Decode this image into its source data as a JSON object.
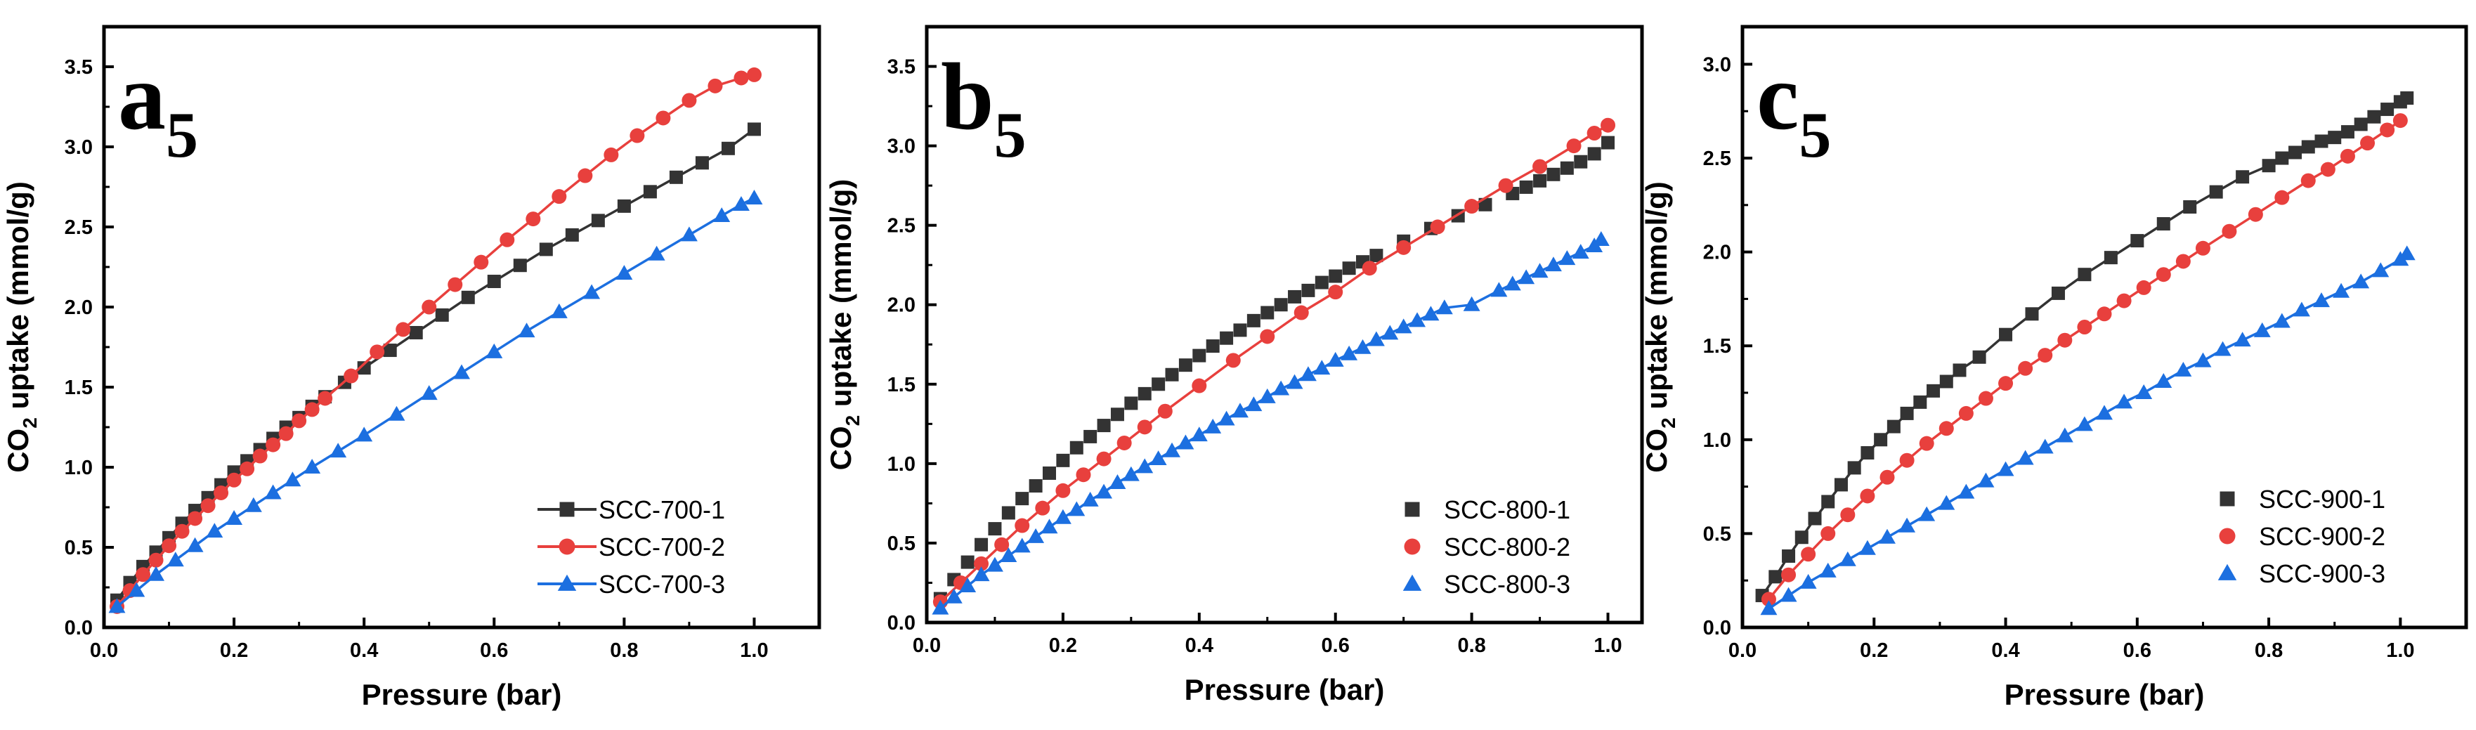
{
  "chart_data": [
    {
      "type": "scatter",
      "panel_letter": "a",
      "panel_subscript": "5",
      "xlabel": "Pressure (bar)",
      "ylabel_prefix": "CO",
      "ylabel_subscript": "2",
      "ylabel_suffix": " uptake (mmol/g)",
      "xlim": [
        0,
        1.1
      ],
      "ylim": [
        0,
        3.75
      ],
      "xticks": [
        0.0,
        0.2,
        0.4,
        0.6,
        0.8,
        1.0
      ],
      "xtick_labels": [
        "0.0",
        "0.2",
        "0.4",
        "0.6",
        "0.8",
        "1.0"
      ],
      "yticks": [
        0.0,
        0.5,
        1.0,
        1.5,
        2.0,
        2.5,
        3.0,
        3.5
      ],
      "ytick_labels": [
        "0.0",
        "0.5",
        "1.0",
        "1.5",
        "2.0",
        "2.5",
        "3.0",
        "3.5"
      ],
      "legend_position": "bottom-right",
      "series": [
        {
          "name": "SCC-700-1",
          "color": "#333333",
          "marker": "square",
          "line": true,
          "x": [
            0.02,
            0.04,
            0.06,
            0.08,
            0.1,
            0.12,
            0.14,
            0.16,
            0.18,
            0.2,
            0.22,
            0.24,
            0.26,
            0.28,
            0.3,
            0.32,
            0.34,
            0.37,
            0.4,
            0.44,
            0.48,
            0.52,
            0.56,
            0.6,
            0.64,
            0.68,
            0.72,
            0.76,
            0.8,
            0.84,
            0.88,
            0.92,
            0.96,
            1.0
          ],
          "y": [
            0.17,
            0.28,
            0.38,
            0.47,
            0.56,
            0.65,
            0.73,
            0.81,
            0.89,
            0.97,
            1.04,
            1.11,
            1.18,
            1.25,
            1.31,
            1.38,
            1.44,
            1.53,
            1.62,
            1.73,
            1.84,
            1.95,
            2.06,
            2.16,
            2.26,
            2.36,
            2.45,
            2.54,
            2.63,
            2.72,
            2.81,
            2.9,
            2.99,
            3.11
          ]
        },
        {
          "name": "SCC-700-2",
          "color": "#e8403d",
          "marker": "circle",
          "line": true,
          "x": [
            0.02,
            0.04,
            0.06,
            0.08,
            0.1,
            0.12,
            0.14,
            0.16,
            0.18,
            0.2,
            0.22,
            0.24,
            0.26,
            0.28,
            0.3,
            0.32,
            0.34,
            0.38,
            0.42,
            0.46,
            0.5,
            0.54,
            0.58,
            0.62,
            0.66,
            0.7,
            0.74,
            0.78,
            0.82,
            0.86,
            0.9,
            0.94,
            0.98,
            1.0
          ],
          "y": [
            0.13,
            0.23,
            0.33,
            0.42,
            0.51,
            0.6,
            0.68,
            0.76,
            0.84,
            0.92,
            0.99,
            1.07,
            1.14,
            1.21,
            1.29,
            1.36,
            1.43,
            1.57,
            1.72,
            1.86,
            2.0,
            2.14,
            2.28,
            2.42,
            2.55,
            2.69,
            2.82,
            2.95,
            3.07,
            3.18,
            3.29,
            3.38,
            3.43,
            3.45
          ]
        },
        {
          "name": "SCC-700-3",
          "color": "#1c6fe0",
          "marker": "triangle",
          "line": true,
          "x": [
            0.02,
            0.05,
            0.08,
            0.11,
            0.14,
            0.17,
            0.2,
            0.23,
            0.26,
            0.29,
            0.32,
            0.36,
            0.4,
            0.45,
            0.5,
            0.55,
            0.6,
            0.65,
            0.7,
            0.75,
            0.8,
            0.85,
            0.9,
            0.95,
            0.98,
            1.0
          ],
          "y": [
            0.13,
            0.23,
            0.33,
            0.42,
            0.51,
            0.6,
            0.68,
            0.76,
            0.84,
            0.92,
            1.0,
            1.1,
            1.2,
            1.33,
            1.46,
            1.59,
            1.72,
            1.85,
            1.97,
            2.09,
            2.21,
            2.33,
            2.45,
            2.57,
            2.64,
            2.68
          ]
        }
      ]
    },
    {
      "type": "scatter",
      "panel_letter": "b",
      "panel_subscript": "5",
      "xlabel": "Pressure (bar)",
      "ylabel_prefix": "CO",
      "ylabel_subscript": "2",
      "ylabel_suffix": " uptake (mmol/g)",
      "xlim": [
        0,
        1.05
      ],
      "ylim": [
        0,
        3.75
      ],
      "xticks": [
        0.0,
        0.2,
        0.4,
        0.6,
        0.8,
        1.0
      ],
      "xtick_labels": [
        "0.0",
        "0.2",
        "0.4",
        "0.6",
        "0.8",
        "1.0"
      ],
      "yticks": [
        0.0,
        0.5,
        1.0,
        1.5,
        2.0,
        2.5,
        3.0,
        3.5
      ],
      "ytick_labels": [
        "0.0",
        "0.5",
        "1.0",
        "1.5",
        "2.0",
        "2.5",
        "3.0",
        "3.5"
      ],
      "legend_position": "bottom-right",
      "series": [
        {
          "name": "SCC-800-1",
          "color": "#333333",
          "marker": "square",
          "line": false,
          "x": [
            0.02,
            0.04,
            0.06,
            0.08,
            0.1,
            0.12,
            0.14,
            0.16,
            0.18,
            0.2,
            0.22,
            0.24,
            0.26,
            0.28,
            0.3,
            0.32,
            0.34,
            0.36,
            0.38,
            0.4,
            0.42,
            0.44,
            0.46,
            0.48,
            0.5,
            0.52,
            0.54,
            0.56,
            0.58,
            0.6,
            0.62,
            0.64,
            0.66,
            0.7,
            0.74,
            0.78,
            0.82,
            0.86,
            0.88,
            0.9,
            0.92,
            0.94,
            0.96,
            0.98,
            1.0
          ],
          "y": [
            0.15,
            0.27,
            0.38,
            0.49,
            0.59,
            0.69,
            0.78,
            0.86,
            0.94,
            1.02,
            1.1,
            1.17,
            1.24,
            1.31,
            1.38,
            1.44,
            1.5,
            1.56,
            1.62,
            1.68,
            1.74,
            1.79,
            1.84,
            1.9,
            1.95,
            2.0,
            2.05,
            2.09,
            2.14,
            2.18,
            2.23,
            2.27,
            2.31,
            2.4,
            2.48,
            2.56,
            2.63,
            2.7,
            2.74,
            2.78,
            2.82,
            2.86,
            2.9,
            2.95,
            3.02
          ]
        },
        {
          "name": "SCC-800-2",
          "color": "#e8403d",
          "marker": "circle",
          "line": true,
          "x": [
            0.02,
            0.05,
            0.08,
            0.11,
            0.14,
            0.17,
            0.2,
            0.23,
            0.26,
            0.29,
            0.32,
            0.35,
            0.4,
            0.45,
            0.5,
            0.55,
            0.6,
            0.65,
            0.7,
            0.75,
            0.8,
            0.85,
            0.9,
            0.95,
            0.98,
            1.0
          ],
          "y": [
            0.13,
            0.25,
            0.37,
            0.49,
            0.61,
            0.72,
            0.83,
            0.93,
            1.03,
            1.13,
            1.23,
            1.33,
            1.49,
            1.65,
            1.8,
            1.95,
            2.08,
            2.23,
            2.36,
            2.49,
            2.62,
            2.75,
            2.87,
            3.0,
            3.08,
            3.13
          ]
        },
        {
          "name": "SCC-800-3",
          "color": "#1c6fe0",
          "marker": "triangle",
          "line": true,
          "x": [
            0.02,
            0.04,
            0.06,
            0.08,
            0.1,
            0.12,
            0.14,
            0.16,
            0.18,
            0.2,
            0.22,
            0.24,
            0.26,
            0.28,
            0.3,
            0.32,
            0.34,
            0.36,
            0.38,
            0.4,
            0.42,
            0.44,
            0.46,
            0.48,
            0.5,
            0.52,
            0.54,
            0.56,
            0.58,
            0.6,
            0.62,
            0.64,
            0.66,
            0.68,
            0.7,
            0.72,
            0.74,
            0.76,
            0.8,
            0.84,
            0.86,
            0.88,
            0.9,
            0.92,
            0.94,
            0.96,
            0.98,
            0.99
          ],
          "y": [
            0.09,
            0.16,
            0.23,
            0.3,
            0.36,
            0.42,
            0.48,
            0.54,
            0.6,
            0.66,
            0.71,
            0.77,
            0.82,
            0.88,
            0.93,
            0.98,
            1.03,
            1.08,
            1.13,
            1.18,
            1.23,
            1.28,
            1.33,
            1.37,
            1.42,
            1.47,
            1.51,
            1.56,
            1.6,
            1.65,
            1.69,
            1.73,
            1.78,
            1.82,
            1.86,
            1.9,
            1.94,
            1.98,
            2.0,
            2.09,
            2.13,
            2.17,
            2.21,
            2.25,
            2.29,
            2.33,
            2.37,
            2.41
          ]
        }
      ]
    },
    {
      "type": "scatter",
      "panel_letter": "c",
      "panel_subscript": "5",
      "xlabel": "Pressure (bar)",
      "ylabel_prefix": "CO",
      "ylabel_subscript": "2",
      "ylabel_suffix": " uptake (mmol/g)",
      "xlim": [
        0,
        1.1
      ],
      "ylim": [
        0,
        3.2
      ],
      "xticks": [
        0.0,
        0.2,
        0.4,
        0.6,
        0.8,
        1.0
      ],
      "xtick_labels": [
        "0.0",
        "0.2",
        "0.4",
        "0.6",
        "0.8",
        "1.0"
      ],
      "yticks": [
        0.0,
        0.5,
        1.0,
        1.5,
        2.0,
        2.5,
        3.0
      ],
      "ytick_labels": [
        "0.0",
        "0.5",
        "1.0",
        "1.5",
        "2.0",
        "2.5",
        "3.0"
      ],
      "legend_position": "bottom-right",
      "series": [
        {
          "name": "SCC-900-1",
          "color": "#333333",
          "marker": "square",
          "line": true,
          "x": [
            0.03,
            0.05,
            0.07,
            0.09,
            0.11,
            0.13,
            0.15,
            0.17,
            0.19,
            0.21,
            0.23,
            0.25,
            0.27,
            0.29,
            0.31,
            0.33,
            0.36,
            0.4,
            0.44,
            0.48,
            0.52,
            0.56,
            0.6,
            0.64,
            0.68,
            0.72,
            0.76,
            0.8,
            0.82,
            0.84,
            0.86,
            0.88,
            0.9,
            0.92,
            0.94,
            0.96,
            0.98,
            1.0,
            1.01
          ],
          "y": [
            0.17,
            0.27,
            0.38,
            0.48,
            0.58,
            0.67,
            0.76,
            0.85,
            0.93,
            1.0,
            1.07,
            1.14,
            1.2,
            1.26,
            1.31,
            1.37,
            1.44,
            1.56,
            1.67,
            1.78,
            1.88,
            1.97,
            2.06,
            2.15,
            2.24,
            2.32,
            2.4,
            2.46,
            2.5,
            2.53,
            2.56,
            2.59,
            2.61,
            2.64,
            2.68,
            2.72,
            2.76,
            2.8,
            2.82
          ]
        },
        {
          "name": "SCC-900-2",
          "color": "#e8403d",
          "marker": "circle",
          "line": true,
          "x": [
            0.04,
            0.07,
            0.1,
            0.13,
            0.16,
            0.19,
            0.22,
            0.25,
            0.28,
            0.31,
            0.34,
            0.37,
            0.4,
            0.43,
            0.46,
            0.49,
            0.52,
            0.55,
            0.58,
            0.61,
            0.64,
            0.67,
            0.7,
            0.74,
            0.78,
            0.82,
            0.86,
            0.89,
            0.92,
            0.95,
            0.98,
            1.0
          ],
          "y": [
            0.15,
            0.28,
            0.39,
            0.5,
            0.6,
            0.7,
            0.8,
            0.89,
            0.98,
            1.06,
            1.14,
            1.22,
            1.3,
            1.38,
            1.45,
            1.53,
            1.6,
            1.67,
            1.74,
            1.81,
            1.88,
            1.95,
            2.02,
            2.11,
            2.2,
            2.29,
            2.38,
            2.44,
            2.51,
            2.58,
            2.65,
            2.7
          ]
        },
        {
          "name": "SCC-900-3",
          "color": "#1c6fe0",
          "marker": "triangle",
          "line": true,
          "x": [
            0.04,
            0.07,
            0.1,
            0.13,
            0.16,
            0.19,
            0.22,
            0.25,
            0.28,
            0.31,
            0.34,
            0.37,
            0.4,
            0.43,
            0.46,
            0.49,
            0.52,
            0.55,
            0.58,
            0.61,
            0.64,
            0.67,
            0.7,
            0.73,
            0.76,
            0.79,
            0.82,
            0.85,
            0.88,
            0.91,
            0.94,
            0.97,
            1.0,
            1.01
          ],
          "y": [
            0.1,
            0.17,
            0.24,
            0.3,
            0.36,
            0.42,
            0.48,
            0.54,
            0.6,
            0.66,
            0.72,
            0.78,
            0.84,
            0.9,
            0.96,
            1.02,
            1.08,
            1.14,
            1.2,
            1.25,
            1.31,
            1.37,
            1.42,
            1.48,
            1.53,
            1.58,
            1.63,
            1.69,
            1.74,
            1.79,
            1.84,
            1.9,
            1.96,
            1.99
          ]
        }
      ]
    }
  ]
}
